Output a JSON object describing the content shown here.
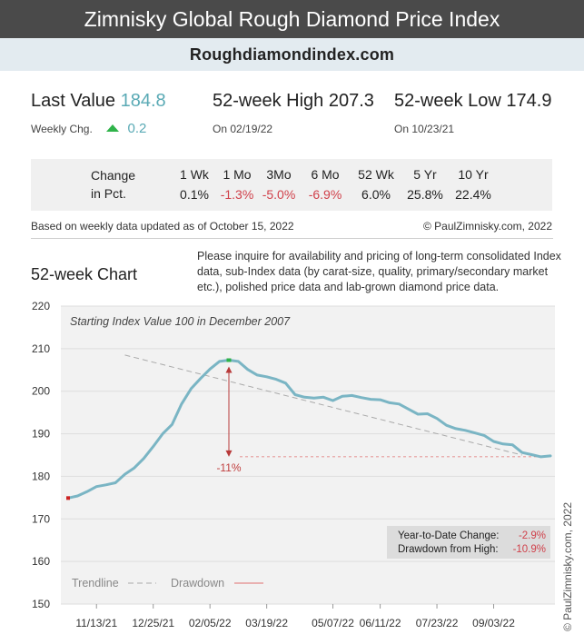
{
  "header": {
    "title": "Zimnisky Global Rough Diamond Price Index",
    "site": "Roughdiamondindex.com"
  },
  "stats": {
    "last_label": "Last Value",
    "last_value": "184.8",
    "weekly_label": "Weekly Chg.",
    "weekly_value": "0.2",
    "high_label": "52-week High",
    "high_value": "207.3",
    "high_date": "On 02/19/22",
    "low_label": "52-week Low",
    "low_value": "174.9",
    "low_date": "On 10/23/21"
  },
  "change": {
    "label_line1": "Change",
    "label_line2": "in Pct.",
    "columns": [
      {
        "period": "1 Wk",
        "value": "0.1%",
        "negative": false
      },
      {
        "period": "1 Mo",
        "value": "-1.3%",
        "negative": true
      },
      {
        "period": "3Mo",
        "value": "-5.0%",
        "negative": true
      },
      {
        "period": "6 Mo",
        "value": "-6.9%",
        "negative": true
      },
      {
        "period": "52 Wk",
        "value": "6.0%",
        "negative": false
      },
      {
        "period": "5 Yr",
        "value": "25.8%",
        "negative": false
      },
      {
        "period": "10 Yr",
        "value": "22.4%",
        "negative": false
      }
    ]
  },
  "notes": {
    "updated": "Based on weekly data updated as of October 15, 2022",
    "copyright": "© PaulZimnisky.com, 2022",
    "chart_title": "52-week Chart",
    "inquire": "Please inquire for availability and pricing of long-term consolidated Index data, sub-Index data (by carat-size, quality, primary/secondary market etc.), polished price data and lab-grown diamond price data.",
    "vertical_credit": "© PaulZimnisky.com, 2022"
  },
  "colors": {
    "line": "#7ab5c4",
    "trend": "#aaaaaa",
    "drawdown": "#e07070",
    "negative": "#d0404a",
    "accent": "#5aaab5",
    "up": "#2fb34a"
  },
  "chart_data": {
    "type": "line",
    "annotation": "Starting Index Value 100 in December 2007",
    "ylim": [
      150,
      220
    ],
    "yticks": [
      150,
      160,
      170,
      180,
      190,
      200,
      210,
      220
    ],
    "xlim": [
      "2021-10-23",
      "2022-10-15"
    ],
    "xticks": [
      "11/13/21",
      "12/25/21",
      "02/05/22",
      "03/19/22",
      "05/07/22",
      "06/11/22",
      "07/23/22",
      "09/03/22"
    ],
    "xtick_dates": [
      "2021-11-13",
      "2021-12-25",
      "2022-02-05",
      "2022-03-19",
      "2022-05-07",
      "2022-06-11",
      "2022-07-23",
      "2022-09-03"
    ],
    "series": [
      {
        "dates": [
          "2021-10-23",
          "2021-10-30",
          "2021-11-06",
          "2021-11-13",
          "2021-11-20",
          "2021-11-27",
          "2021-12-04",
          "2021-12-11",
          "2021-12-18",
          "2021-12-25",
          "2022-01-01",
          "2022-01-08",
          "2022-01-15",
          "2022-01-22",
          "2022-01-29",
          "2022-02-05",
          "2022-02-12",
          "2022-02-19",
          "2022-02-26",
          "2022-03-05",
          "2022-03-12",
          "2022-03-19",
          "2022-03-26",
          "2022-04-02",
          "2022-04-09",
          "2022-04-16",
          "2022-04-23",
          "2022-04-30",
          "2022-05-07",
          "2022-05-14",
          "2022-05-21",
          "2022-05-28",
          "2022-06-04",
          "2022-06-11",
          "2022-06-18",
          "2022-06-25",
          "2022-07-02",
          "2022-07-09",
          "2022-07-16",
          "2022-07-23",
          "2022-07-30",
          "2022-08-06",
          "2022-08-13",
          "2022-08-20",
          "2022-08-27",
          "2022-09-03",
          "2022-09-10",
          "2022-09-17",
          "2022-09-24",
          "2022-10-01",
          "2022-10-08",
          "2022-10-15"
        ],
        "values": [
          174.9,
          175.4,
          176.4,
          177.6,
          178.0,
          178.5,
          180.5,
          182.0,
          184.2,
          187.0,
          190.0,
          192.2,
          197.0,
          200.6,
          203.0,
          205.2,
          207.0,
          207.3,
          207.0,
          205.1,
          203.8,
          203.4,
          202.8,
          201.9,
          199.2,
          198.6,
          198.4,
          198.6,
          197.8,
          198.8,
          199.0,
          198.5,
          198.1,
          198.0,
          197.3,
          197.0,
          195.8,
          194.6,
          194.7,
          193.6,
          192.0,
          191.2,
          190.8,
          190.2,
          189.6,
          188.2,
          187.6,
          187.4,
          185.6,
          185.1,
          184.6,
          184.8
        ]
      }
    ],
    "trendline": {
      "start": [
        "2021-12-04",
        208.5
      ],
      "end": [
        "2022-09-24",
        185.0
      ]
    },
    "drawdown": {
      "label": "-11%",
      "from_date": "2022-02-19",
      "from_value": 207.3,
      "to_value": 184.6
    },
    "highlights": {
      "low_date": "2021-10-23",
      "high_date": "2022-02-19"
    },
    "legend": {
      "position": "bottom-left",
      "trendline_label": "Trendline",
      "drawdown_label": "Drawdown"
    },
    "summary": {
      "ytd_label": "Year-to-Date Change:",
      "ytd_value": "-2.9%",
      "dd_label": "Drawdown from High:",
      "dd_value": "-10.9%"
    }
  }
}
